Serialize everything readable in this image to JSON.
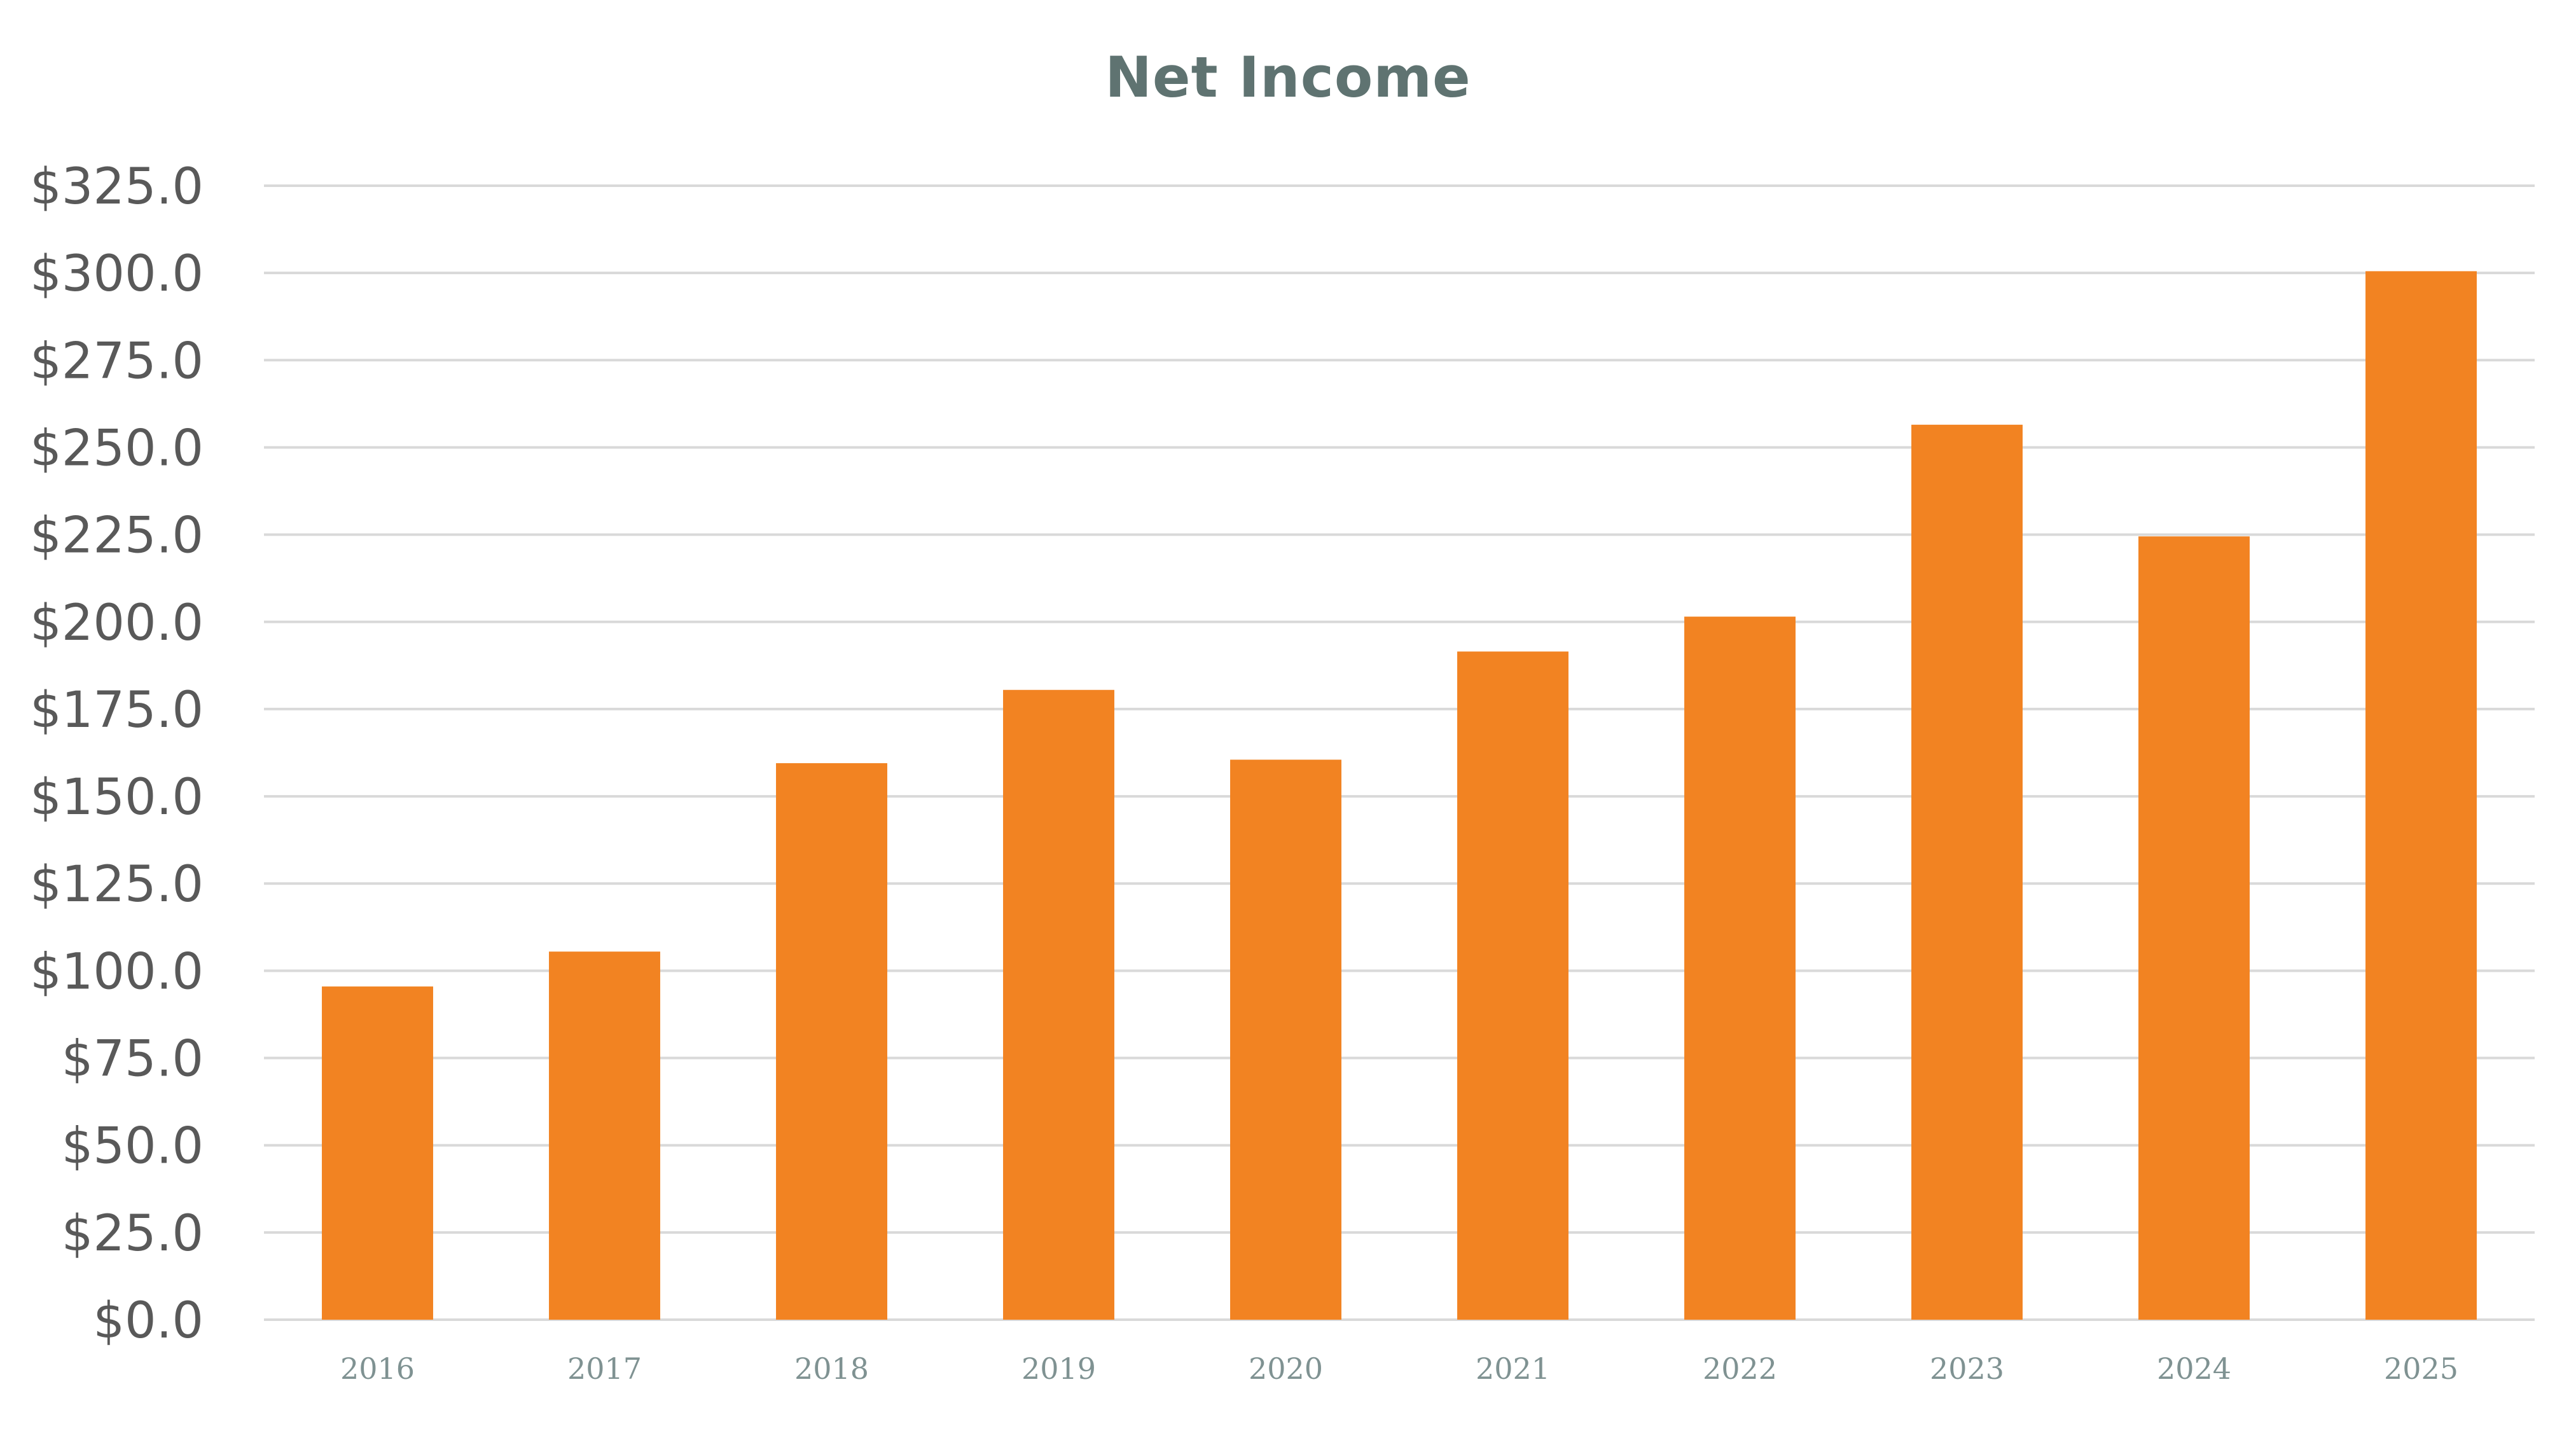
{
  "chart_data": {
    "type": "bar",
    "title": "Net Income",
    "xlabel": "",
    "ylabel": "",
    "categories": [
      "2016",
      "2017",
      "2018",
      "2019",
      "2020",
      "2021",
      "2022",
      "2023",
      "2024",
      "2025"
    ],
    "series": [
      {
        "values": [
          95.5,
          105.5,
          159.5,
          180.5,
          160.5,
          191.5,
          201.5,
          256.5,
          224.5,
          300.5
        ]
      }
    ],
    "ylim": [
      0,
      325
    ],
    "ytick_step": 25,
    "ytick_labels": [
      "$0.0",
      "$25.0",
      "$50.0",
      "$75.0",
      "$100.0",
      "$125.0",
      "$150.0",
      "$175.0",
      "$200.0",
      "$225.0",
      "$250.0",
      "$275.0",
      "$300.0",
      "$325.0"
    ],
    "grid": true,
    "legend": "none",
    "colors": {
      "bar": "#f28322",
      "grid": "#d9d9d9",
      "title": "#5f7371",
      "ytick": "#595959",
      "xtick": "#7f9292"
    }
  }
}
